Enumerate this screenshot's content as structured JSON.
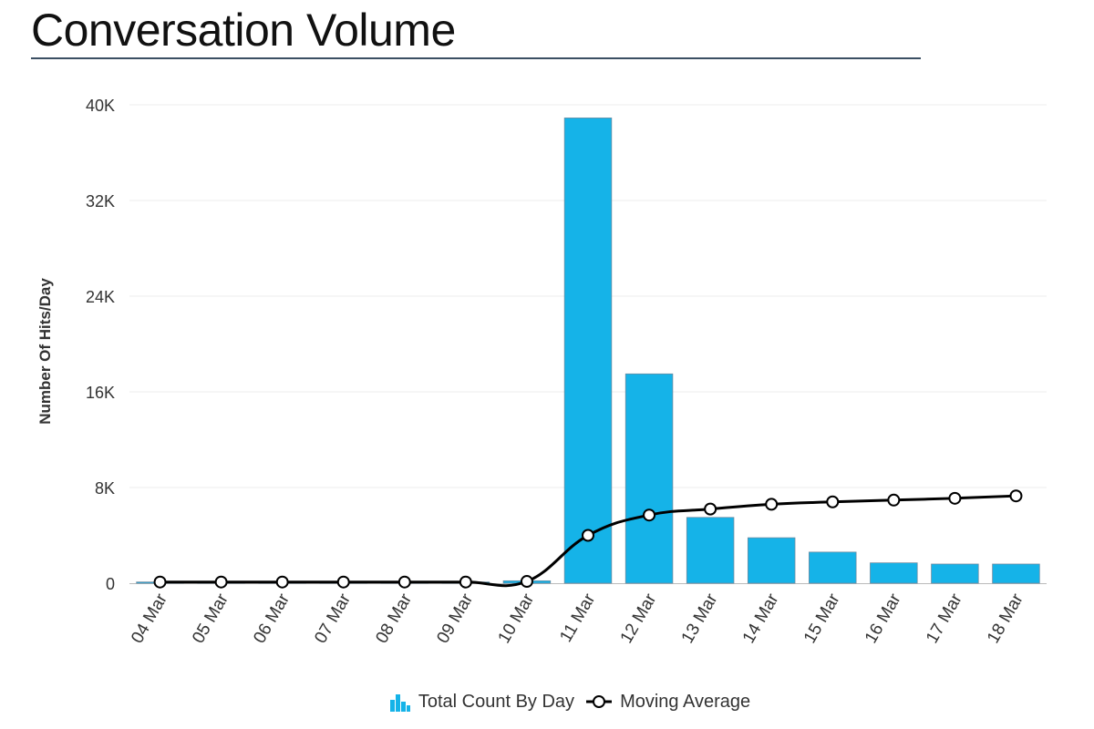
{
  "page": {
    "title": "Conversation Volume"
  },
  "chart_data": {
    "type": "bar",
    "title": "Conversation Volume",
    "xlabel": "",
    "ylabel": "Number Of Hits/Day",
    "ylim": [
      0,
      40000
    ],
    "yticks": [
      "0",
      "8K",
      "16K",
      "24K",
      "32K",
      "40K"
    ],
    "ytick_values": [
      0,
      8000,
      16000,
      24000,
      32000,
      40000
    ],
    "grid": true,
    "legend_position": "bottom",
    "categories": [
      "04 Mar",
      "05 Mar",
      "06 Mar",
      "07 Mar",
      "08 Mar",
      "09 Mar",
      "10 Mar",
      "11 Mar",
      "12 Mar",
      "13 Mar",
      "14 Mar",
      "15 Mar",
      "16 Mar",
      "17 Mar",
      "18 Mar"
    ],
    "series": [
      {
        "name": "Total Count By Day",
        "type": "bar",
        "color": "#15b3e8",
        "values": [
          100,
          100,
          100,
          100,
          100,
          100,
          200,
          38900,
          17500,
          5500,
          3800,
          2600,
          1700,
          1600,
          1600
        ]
      },
      {
        "name": "Moving Average",
        "type": "line",
        "color": "#000000",
        "values": [
          100,
          100,
          100,
          100,
          100,
          100,
          150,
          4000,
          5700,
          6200,
          6600,
          6800,
          6950,
          7100,
          7300
        ]
      }
    ]
  }
}
